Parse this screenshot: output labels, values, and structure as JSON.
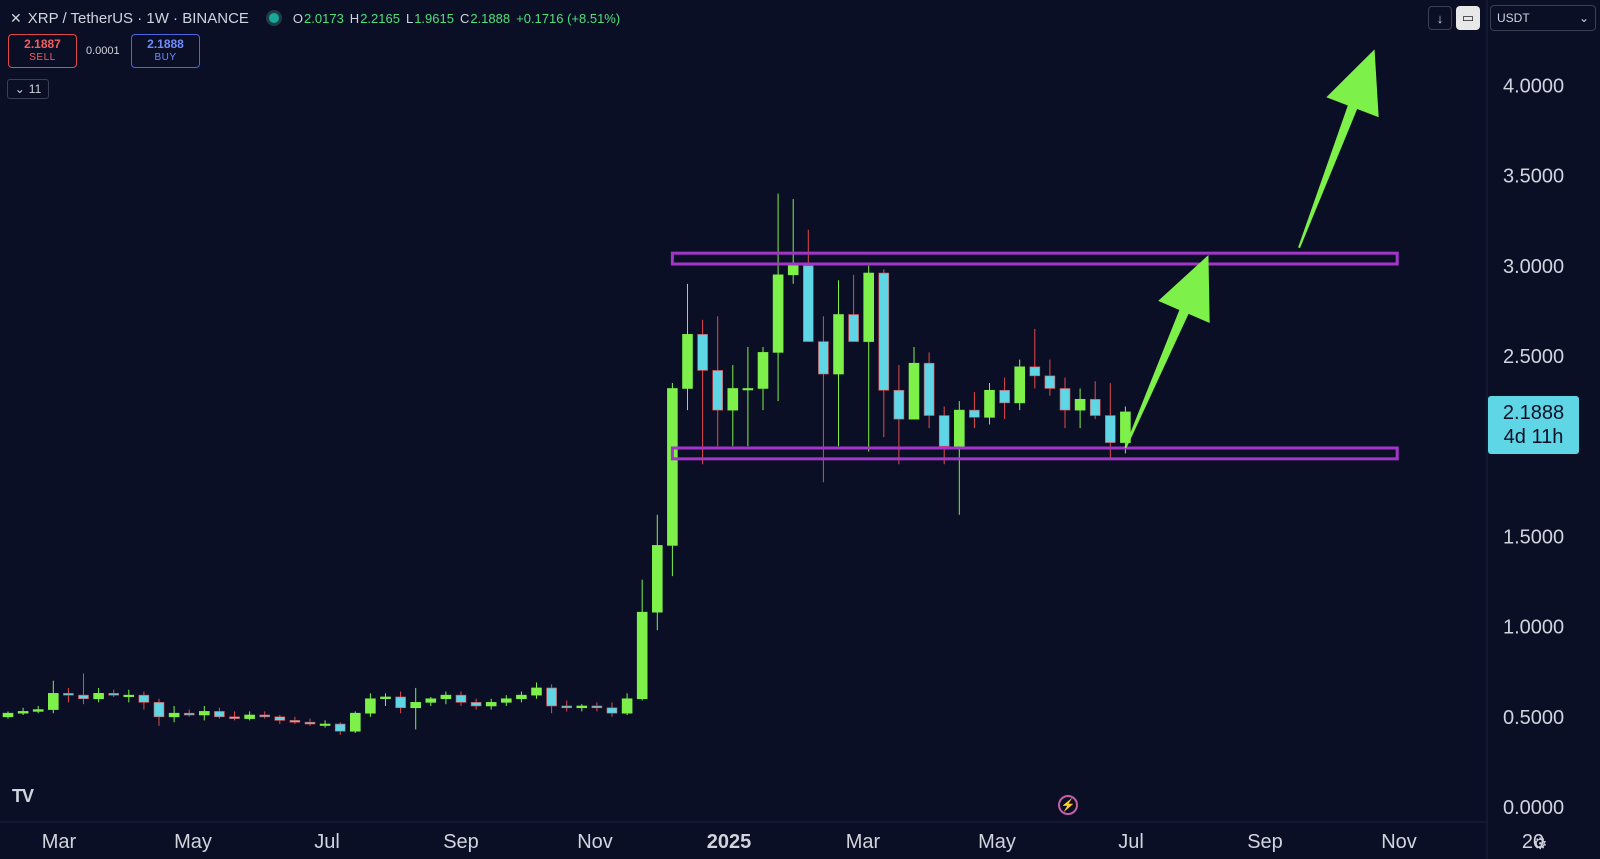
{
  "header": {
    "symbol": "XRP / TetherUS · 1W · BINANCE",
    "open_key": "O",
    "open": "2.0173",
    "high_key": "H",
    "high": "2.2165",
    "low_key": "L",
    "low": "1.9615",
    "close_key": "C",
    "close": "2.1888",
    "change": "+0.1716 (+8.51%)"
  },
  "trade": {
    "sell_price": "2.1887",
    "sell_label": "SELL",
    "spread": "0.0001",
    "buy_price": "2.1888",
    "buy_label": "BUY"
  },
  "indicators_collapse": {
    "count": "11"
  },
  "toolbar": {
    "currency": "USDT"
  },
  "price_tag": {
    "price": "2.1888",
    "countdown": "4d 11h"
  },
  "icons": [
    "xrp-logo-icon",
    "download-arrow-icon",
    "fullscreen-icon",
    "chevron-down-icon",
    "tradingview-logo-icon",
    "lightning-icon",
    "settings-gear-icon"
  ],
  "colors": {
    "background": "#0b0f26",
    "up_candle": "#7ef04a",
    "down_candle": "#5fd6e6",
    "wick_up": "#7ef04a",
    "wick_down": "#e24a4a",
    "zone": "#a335c9",
    "arrow": "#7ef04a",
    "price_tag": "#5fd6e6"
  },
  "chart_data": {
    "type": "candlestick",
    "y_ticks": [
      "4.0000",
      "3.5000",
      "3.0000",
      "2.5000",
      "1.5000",
      "1.0000",
      "0.5000",
      "0.0000"
    ],
    "x_ticks": [
      "Mar",
      "May",
      "Jul",
      "Sep",
      "Nov",
      "2025",
      "Mar",
      "May",
      "Jul",
      "Sep",
      "Nov",
      "20"
    ],
    "ylim": [
      0,
      4.3
    ],
    "candles": [
      [
        0.5,
        0.53,
        0.49,
        0.52
      ],
      [
        0.52,
        0.55,
        0.51,
        0.53
      ],
      [
        0.53,
        0.56,
        0.52,
        0.54
      ],
      [
        0.54,
        0.7,
        0.52,
        0.63
      ],
      [
        0.63,
        0.66,
        0.58,
        0.62
      ],
      [
        0.62,
        0.74,
        0.57,
        0.6
      ],
      [
        0.6,
        0.66,
        0.58,
        0.63
      ],
      [
        0.63,
        0.65,
        0.61,
        0.62
      ],
      [
        0.62,
        0.65,
        0.58,
        0.62
      ],
      [
        0.62,
        0.64,
        0.54,
        0.58
      ],
      [
        0.58,
        0.6,
        0.45,
        0.5
      ],
      [
        0.5,
        0.56,
        0.47,
        0.52
      ],
      [
        0.52,
        0.54,
        0.5,
        0.51
      ],
      [
        0.51,
        0.56,
        0.48,
        0.53
      ],
      [
        0.53,
        0.55,
        0.49,
        0.5
      ],
      [
        0.5,
        0.53,
        0.48,
        0.49
      ],
      [
        0.49,
        0.53,
        0.48,
        0.51
      ],
      [
        0.51,
        0.53,
        0.49,
        0.5
      ],
      [
        0.5,
        0.51,
        0.46,
        0.48
      ],
      [
        0.48,
        0.5,
        0.46,
        0.47
      ],
      [
        0.47,
        0.49,
        0.45,
        0.46
      ],
      [
        0.46,
        0.48,
        0.44,
        0.46
      ],
      [
        0.46,
        0.47,
        0.4,
        0.42
      ],
      [
        0.42,
        0.53,
        0.41,
        0.52
      ],
      [
        0.52,
        0.63,
        0.5,
        0.6
      ],
      [
        0.6,
        0.63,
        0.56,
        0.61
      ],
      [
        0.61,
        0.64,
        0.52,
        0.55
      ],
      [
        0.55,
        0.66,
        0.43,
        0.58
      ],
      [
        0.58,
        0.61,
        0.56,
        0.6
      ],
      [
        0.6,
        0.64,
        0.57,
        0.62
      ],
      [
        0.62,
        0.64,
        0.56,
        0.58
      ],
      [
        0.58,
        0.6,
        0.54,
        0.56
      ],
      [
        0.56,
        0.6,
        0.54,
        0.58
      ],
      [
        0.58,
        0.62,
        0.56,
        0.6
      ],
      [
        0.6,
        0.64,
        0.58,
        0.62
      ],
      [
        0.62,
        0.69,
        0.6,
        0.66
      ],
      [
        0.66,
        0.68,
        0.52,
        0.56
      ],
      [
        0.56,
        0.59,
        0.53,
        0.55
      ],
      [
        0.55,
        0.57,
        0.53,
        0.56
      ],
      [
        0.56,
        0.58,
        0.53,
        0.55
      ],
      [
        0.55,
        0.58,
        0.5,
        0.52
      ],
      [
        0.52,
        0.63,
        0.51,
        0.6
      ],
      [
        0.6,
        1.26,
        0.59,
        1.08
      ],
      [
        1.08,
        1.62,
        0.98,
        1.45
      ],
      [
        1.45,
        2.35,
        1.28,
        2.32
      ],
      [
        2.32,
        2.9,
        2.2,
        2.62
      ],
      [
        2.62,
        2.7,
        1.9,
        2.42
      ],
      [
        2.42,
        2.72,
        2.0,
        2.2
      ],
      [
        2.2,
        2.45,
        2.0,
        2.32
      ],
      [
        2.32,
        2.55,
        2.0,
        2.32
      ],
      [
        2.32,
        2.55,
        2.2,
        2.52
      ],
      [
        2.52,
        3.4,
        2.25,
        2.95
      ],
      [
        2.95,
        3.37,
        2.9,
        3.0
      ],
      [
        3.0,
        3.2,
        2.6,
        2.58
      ],
      [
        2.58,
        2.72,
        1.8,
        2.4
      ],
      [
        2.4,
        2.92,
        2.0,
        2.73
      ],
      [
        2.73,
        2.95,
        2.6,
        2.58
      ],
      [
        2.58,
        3.0,
        1.97,
        2.96
      ],
      [
        2.96,
        2.98,
        2.05,
        2.31
      ],
      [
        2.31,
        2.45,
        1.9,
        2.15
      ],
      [
        2.15,
        2.55,
        2.15,
        2.46
      ],
      [
        2.46,
        2.52,
        2.1,
        2.17
      ],
      [
        2.17,
        2.22,
        1.9,
        2.0
      ],
      [
        2.0,
        2.25,
        1.62,
        2.2
      ],
      [
        2.2,
        2.3,
        2.1,
        2.16
      ],
      [
        2.16,
        2.35,
        2.12,
        2.31
      ],
      [
        2.31,
        2.38,
        2.15,
        2.24
      ],
      [
        2.24,
        2.48,
        2.2,
        2.44
      ],
      [
        2.44,
        2.65,
        2.32,
        2.39
      ],
      [
        2.39,
        2.48,
        2.28,
        2.32
      ],
      [
        2.32,
        2.38,
        2.1,
        2.2
      ],
      [
        2.2,
        2.32,
        2.1,
        2.26
      ],
      [
        2.26,
        2.36,
        2.15,
        2.17
      ],
      [
        2.17,
        2.35,
        1.93,
        2.02
      ],
      [
        2.02,
        2.22,
        1.96,
        2.19
      ]
    ],
    "zones": [
      {
        "name": "resistance",
        "low": 3.01,
        "high": 3.07,
        "from_index": 44,
        "to_index": 92
      },
      {
        "name": "support",
        "low": 1.93,
        "high": 1.99,
        "from_index": 44,
        "to_index": 92
      }
    ],
    "annotations": [
      {
        "type": "arrow",
        "from": [
          74.0,
          1.99
        ],
        "to": [
          79.5,
          3.06
        ]
      },
      {
        "type": "arrow",
        "from": [
          85.5,
          3.1
        ],
        "to": [
          90.5,
          4.2
        ]
      }
    ],
    "current_price": 2.1888,
    "grid": false,
    "legend": "none"
  }
}
